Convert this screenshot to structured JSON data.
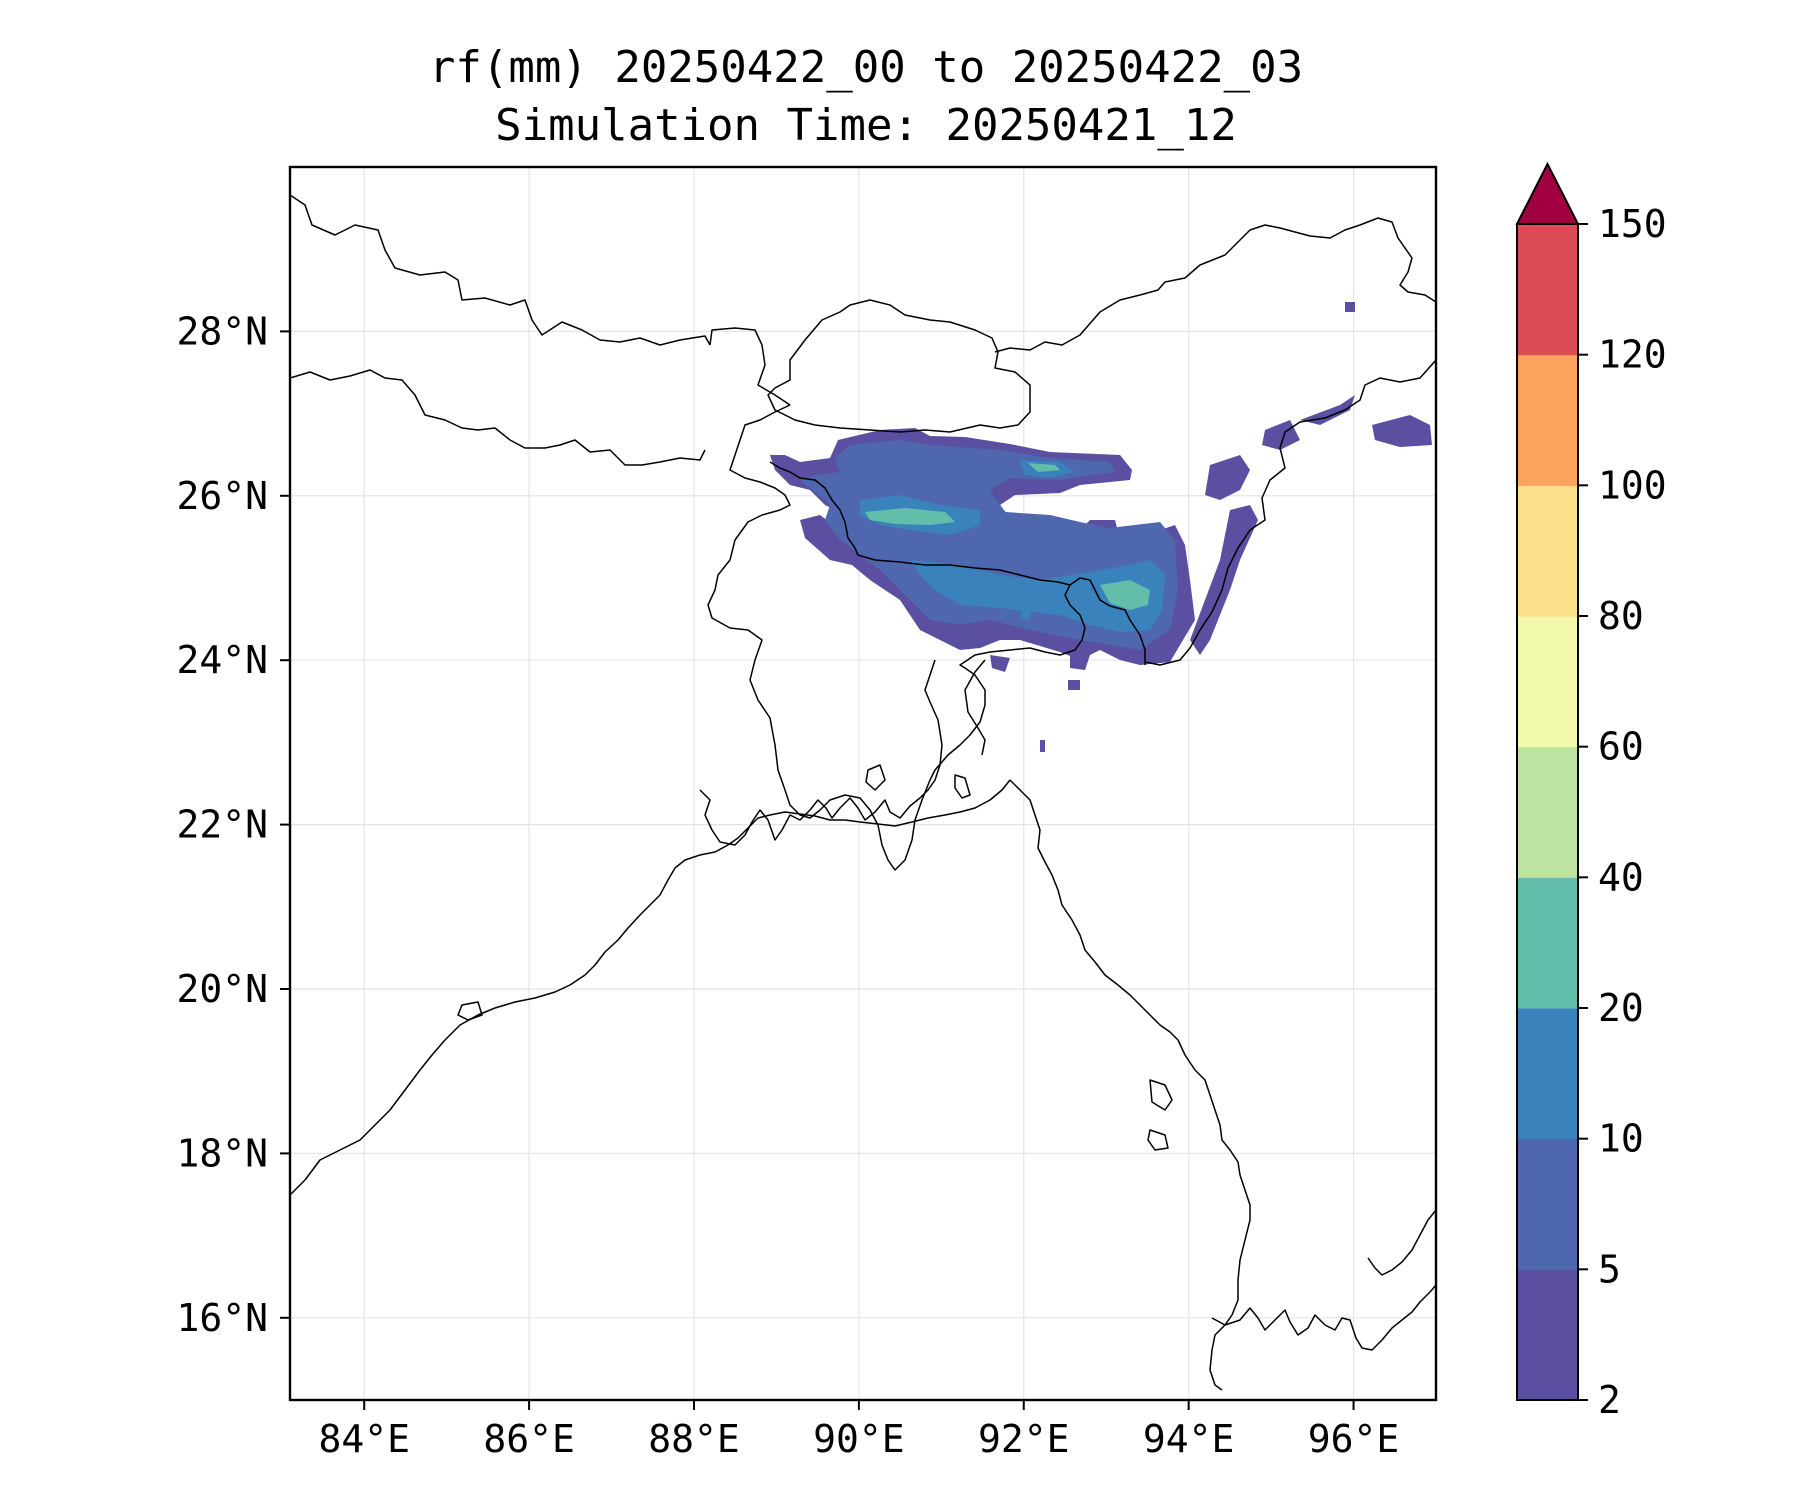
{
  "title": {
    "line1": "rf(mm) 20250422_00 to 20250422_03",
    "line2": "Simulation Time: 20250421_12"
  },
  "map": {
    "lon_range": [
      83.1,
      97.0
    ],
    "lat_range": [
      15.0,
      30.0
    ],
    "lon_ticks": [
      "84°E",
      "86°E",
      "88°E",
      "90°E",
      "92°E",
      "94°E",
      "96°E"
    ],
    "lat_ticks": [
      "28°N",
      "26°N",
      "24°N",
      "22°N",
      "20°N",
      "18°N",
      "16°N"
    ],
    "grid": true
  },
  "colorbar": {
    "levels": [
      "2",
      "5",
      "10",
      "20",
      "40",
      "60",
      "80",
      "100",
      "120",
      "150"
    ],
    "colors": [
      "#5a4fa0",
      "#4e67ae",
      "#3a82bc",
      "#62bdaa",
      "#bde3a0",
      "#f3f9ab",
      "#fce08b",
      "#fca45d",
      "#dc4c55"
    ],
    "extend_color": "#a0003f",
    "extend": "max"
  }
}
